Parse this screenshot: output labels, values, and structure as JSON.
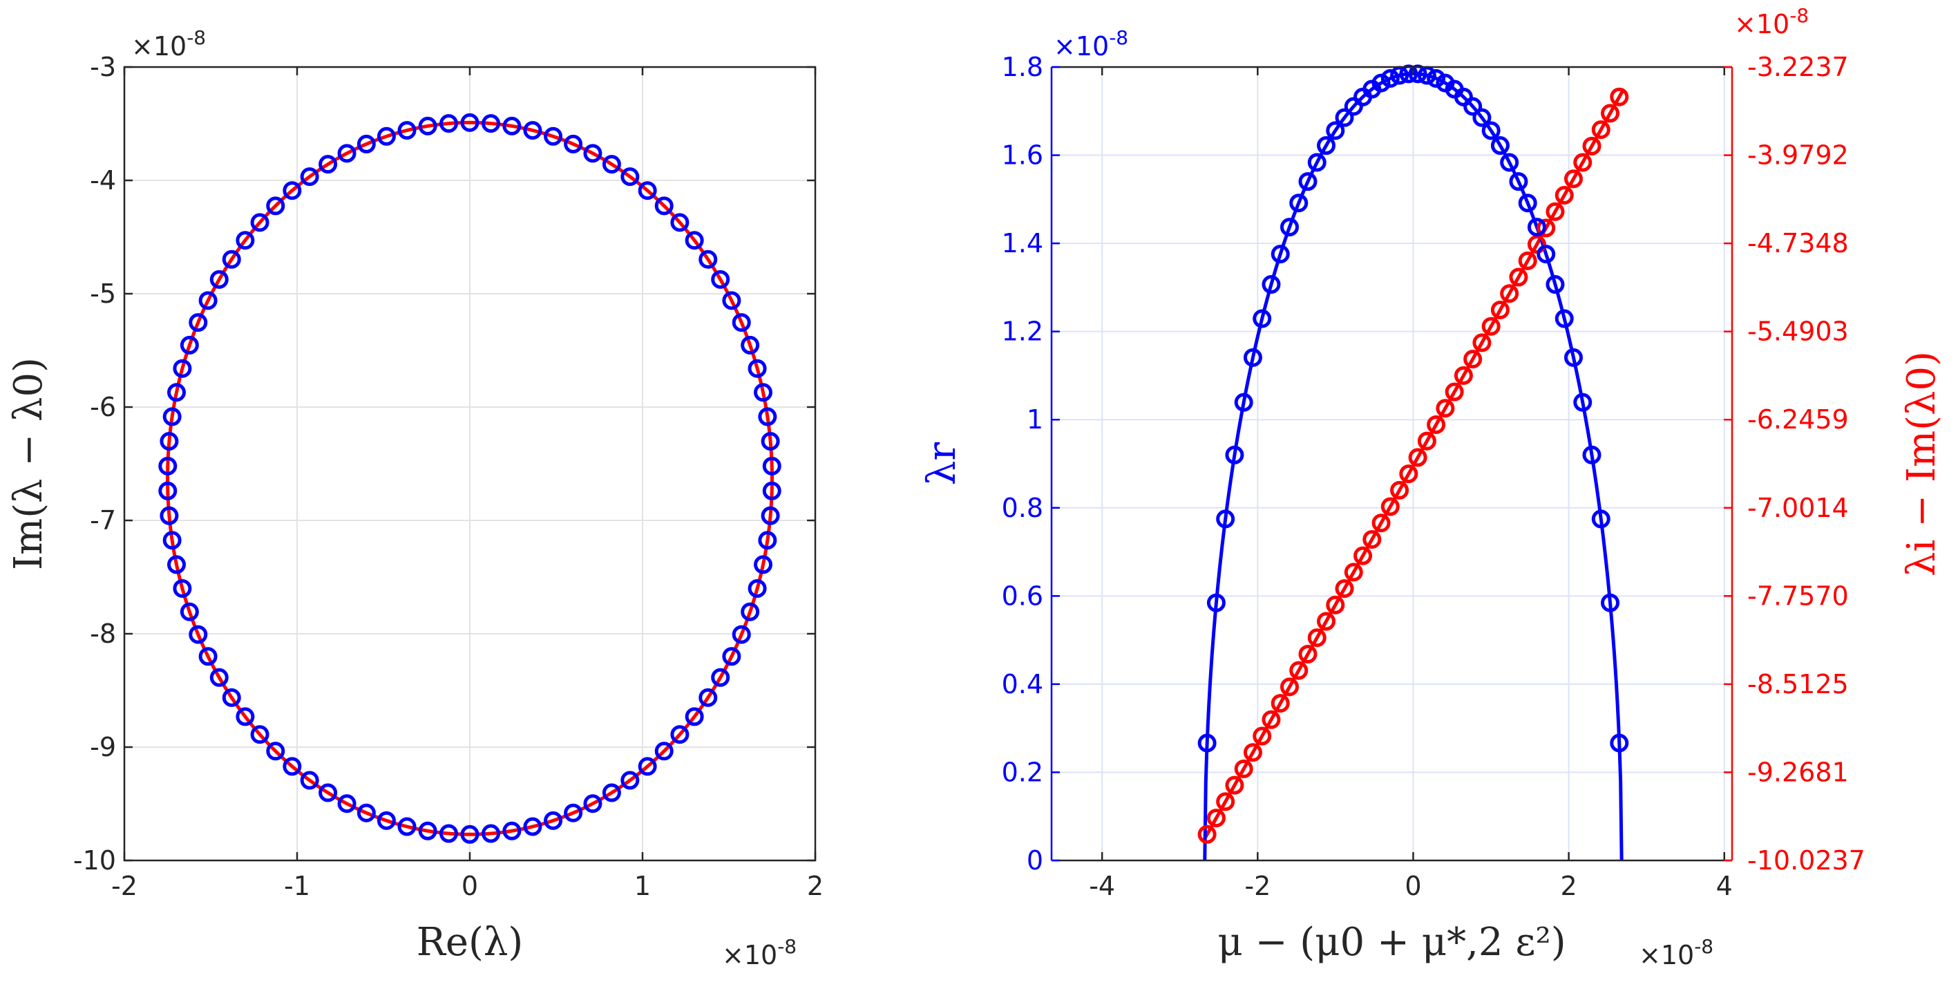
{
  "chart_data": [
    {
      "type": "scatter",
      "panel": "left",
      "xlabel": "Re(λ)",
      "ylabel": "Im(λ − λ0)",
      "x_multiplier": "×10⁻⁸",
      "y_multiplier": "×10⁻⁸",
      "xlim": [
        -2,
        2
      ],
      "ylim": [
        -10,
        -3
      ],
      "xticks": [
        -2,
        -1,
        0,
        1,
        2
      ],
      "yticks": [
        -10,
        -9,
        -8,
        -7,
        -6,
        -5,
        -4,
        -3
      ],
      "grid": true,
      "ellipse": {
        "center": [
          0,
          -6.63
        ],
        "semi_x": 1.75,
        "semi_y": 3.14
      },
      "series": [
        {
          "name": "curve",
          "style": "line",
          "color": "#ff0000"
        },
        {
          "name": "samples",
          "style": "circles",
          "color": "#0000ff",
          "count": 90
        }
      ]
    },
    {
      "type": "line",
      "panel": "right",
      "xlabel": "μ − (μ0 + μ*,2 ε²)",
      "ylabel_left": "λr",
      "ylabel_right": "λi − Im(λ0)",
      "x_multiplier": "×10⁻⁸",
      "y_multiplier_left": "×10⁻⁸",
      "y_multiplier_right": "×10⁻⁸",
      "xlim": [
        -4.65,
        4.1
      ],
      "xticks": [
        -4,
        -2,
        0,
        2,
        4
      ],
      "ylim_left": [
        0,
        1.8
      ],
      "yticks_left": [
        0,
        0.2,
        0.4,
        0.6,
        0.8,
        1,
        1.2,
        1.4,
        1.6,
        1.8
      ],
      "ylim_right": [
        -10.0237,
        -3.2237
      ],
      "yticks_right": [
        "-10.0237",
        "-9.2681",
        "-8.5125",
        "-7.7570",
        "-7.0014",
        "-6.2459",
        "-5.4903",
        "-4.7348",
        "-3.9792",
        "-3.2237"
      ],
      "grid": true,
      "series": [
        {
          "name": "λr",
          "axis": "left",
          "color": "#0000ff",
          "model": "parabola",
          "x_range": [
            -2.68,
            2.68
          ],
          "peak": 1.785
        },
        {
          "name": "λi − Im(λ0)",
          "axis": "right",
          "color": "#ff0000",
          "model": "linear",
          "x_range": [
            -2.7,
            2.7
          ],
          "y_range": [
            -9.86,
            -3.42
          ]
        }
      ],
      "markers": {
        "count": 46
      }
    }
  ]
}
